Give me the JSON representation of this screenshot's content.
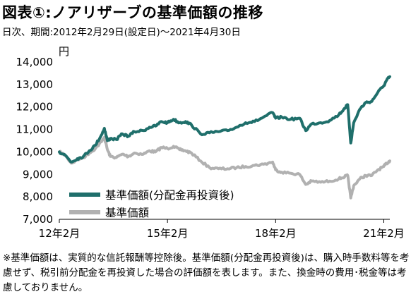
{
  "title": "図表①:ノアリザーブの基準価額の推移",
  "subtitle": "日次、期間:2012年2月29日(設定日)〜2021年4月30日",
  "note": "※基準価額は、実質的な信託報酬等控除後。基準価額(分配金再投資後)は、購入時手数料等を考慮せず、税引前分配金を再投資した場合の評価額を表します。また、換金時の費用･税金等は考慮しておりません。",
  "chart_data": {
    "type": "line",
    "unit": "円",
    "ylim": [
      7000,
      14000
    ],
    "y_ticks": [
      "14,000",
      "13,000",
      "12,000",
      "11,000",
      "10,000",
      "9,000",
      "8,000",
      "7,000"
    ],
    "y_tick_values": [
      14000,
      13000,
      12000,
      11000,
      10000,
      9000,
      8000,
      7000
    ],
    "xlim": [
      "2012-02",
      "2021-04"
    ],
    "x_ticks": [
      "12年2月",
      "15年2月",
      "18年2月",
      "21年2月"
    ],
    "x_tick_values": [
      "2012-02",
      "2015-02",
      "2018-02",
      "2021-02"
    ],
    "grid": false,
    "legend_position": "bottom-left",
    "series": [
      {
        "name": "基準価額(分配金再投資後)",
        "color": "#1f6f6b",
        "points": [
          [
            "2012-02",
            10000
          ],
          [
            "2012-04",
            9850
          ],
          [
            "2012-06",
            9550
          ],
          [
            "2012-08",
            9700
          ],
          [
            "2012-10",
            9800
          ],
          [
            "2012-12",
            10050
          ],
          [
            "2013-02",
            10300
          ],
          [
            "2013-04",
            10750
          ],
          [
            "2013-05",
            11050
          ],
          [
            "2013-06",
            10500
          ],
          [
            "2013-07",
            10600
          ],
          [
            "2013-09",
            10550
          ],
          [
            "2013-11",
            10800
          ],
          [
            "2014-01",
            10700
          ],
          [
            "2014-03",
            10900
          ],
          [
            "2014-06",
            10950
          ],
          [
            "2014-08",
            11100
          ],
          [
            "2014-10",
            11150
          ],
          [
            "2014-12",
            11350
          ],
          [
            "2015-02",
            11300
          ],
          [
            "2015-04",
            11450
          ],
          [
            "2015-06",
            11300
          ],
          [
            "2015-08",
            11350
          ],
          [
            "2015-10",
            11200
          ],
          [
            "2016-01",
            10800
          ],
          [
            "2016-04",
            10850
          ],
          [
            "2016-07",
            10900
          ],
          [
            "2016-10",
            10950
          ],
          [
            "2017-01",
            11100
          ],
          [
            "2017-04",
            11300
          ],
          [
            "2017-07",
            11350
          ],
          [
            "2017-10",
            11550
          ],
          [
            "2018-01",
            11750
          ],
          [
            "2018-02",
            11500
          ],
          [
            "2018-04",
            11550
          ],
          [
            "2018-07",
            11450
          ],
          [
            "2018-10",
            11500
          ],
          [
            "2018-12",
            10950
          ],
          [
            "2019-02",
            11250
          ],
          [
            "2019-05",
            11300
          ],
          [
            "2019-08",
            11400
          ],
          [
            "2019-11",
            11650
          ],
          [
            "2020-01",
            11950
          ],
          [
            "2020-02",
            12100
          ],
          [
            "2020-03",
            10400
          ],
          [
            "2020-04",
            11300
          ],
          [
            "2020-06",
            11900
          ],
          [
            "2020-08",
            12200
          ],
          [
            "2020-10",
            12250
          ],
          [
            "2020-12",
            12650
          ],
          [
            "2021-02",
            12950
          ],
          [
            "2021-03",
            13200
          ],
          [
            "2021-04",
            13350
          ]
        ]
      },
      {
        "name": "基準価額",
        "color": "#b1b1b1",
        "points": [
          [
            "2012-02",
            10000
          ],
          [
            "2012-04",
            9850
          ],
          [
            "2012-06",
            9500
          ],
          [
            "2012-08",
            9650
          ],
          [
            "2012-10",
            9750
          ],
          [
            "2012-12",
            9950
          ],
          [
            "2013-02",
            10150
          ],
          [
            "2013-04",
            10450
          ],
          [
            "2013-05",
            10650
          ],
          [
            "2013-06",
            10100
          ],
          [
            "2013-07",
            9800
          ],
          [
            "2013-09",
            9750
          ],
          [
            "2013-11",
            9900
          ],
          [
            "2014-01",
            9800
          ],
          [
            "2014-03",
            9950
          ],
          [
            "2014-06",
            9900
          ],
          [
            "2014-08",
            10050
          ],
          [
            "2014-10",
            10000
          ],
          [
            "2014-12",
            10200
          ],
          [
            "2015-02",
            10150
          ],
          [
            "2015-04",
            10250
          ],
          [
            "2015-06",
            10100
          ],
          [
            "2015-08",
            10050
          ],
          [
            "2015-10",
            9950
          ],
          [
            "2016-01",
            9600
          ],
          [
            "2016-04",
            9300
          ],
          [
            "2016-07",
            9250
          ],
          [
            "2016-10",
            9250
          ],
          [
            "2017-01",
            9300
          ],
          [
            "2017-04",
            9350
          ],
          [
            "2017-07",
            9400
          ],
          [
            "2017-10",
            9450
          ],
          [
            "2018-01",
            9550
          ],
          [
            "2018-02",
            9200
          ],
          [
            "2018-04",
            9100
          ],
          [
            "2018-07",
            9050
          ],
          [
            "2018-10",
            9000
          ],
          [
            "2018-12",
            8550
          ],
          [
            "2019-02",
            8700
          ],
          [
            "2019-05",
            8650
          ],
          [
            "2019-08",
            8700
          ],
          [
            "2019-11",
            8800
          ],
          [
            "2020-01",
            8900
          ],
          [
            "2020-02",
            8950
          ],
          [
            "2020-03",
            7950
          ],
          [
            "2020-04",
            8500
          ],
          [
            "2020-06",
            8800
          ],
          [
            "2020-08",
            8950
          ],
          [
            "2020-10",
            8950
          ],
          [
            "2020-12",
            9200
          ],
          [
            "2021-02",
            9350
          ],
          [
            "2021-03",
            9500
          ],
          [
            "2021-04",
            9600
          ]
        ]
      }
    ]
  }
}
